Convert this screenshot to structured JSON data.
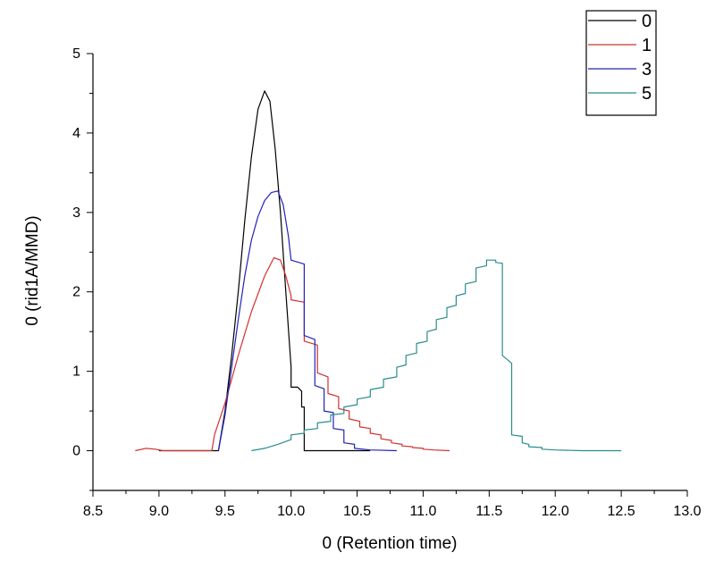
{
  "chart_data": {
    "type": "line",
    "title": "",
    "xlabel": "0 (Retention time)",
    "ylabel": "0 (rid1A/MMD)",
    "xlim": [
      8.5,
      13.0
    ],
    "ylim": [
      -0.5,
      5.0
    ],
    "xticks": [
      "8.5",
      "9.0",
      "9.5",
      "10.0",
      "10.5",
      "11.0",
      "11.5",
      "12.0",
      "12.5",
      "13.0"
    ],
    "yticks": [
      "0",
      "1",
      "2",
      "3",
      "4",
      "5"
    ],
    "grid": false,
    "legend_position": "top-right",
    "series": [
      {
        "name": "0",
        "color": "#000000",
        "points": [
          [
            9.0,
            0
          ],
          [
            9.1,
            0
          ],
          [
            9.2,
            0
          ],
          [
            9.3,
            0
          ],
          [
            9.4,
            0
          ],
          [
            9.45,
            0
          ],
          [
            9.5,
            0.5
          ],
          [
            9.55,
            1.2
          ],
          [
            9.6,
            2.0
          ],
          [
            9.65,
            2.9
          ],
          [
            9.7,
            3.7
          ],
          [
            9.75,
            4.3
          ],
          [
            9.8,
            4.53
          ],
          [
            9.84,
            4.4
          ],
          [
            9.88,
            3.8
          ],
          [
            9.92,
            3.0
          ],
          [
            9.96,
            2.0
          ],
          [
            10.0,
            1.05
          ],
          [
            10.0,
            0.8
          ],
          [
            10.05,
            0.8
          ],
          [
            10.08,
            0.75
          ],
          [
            10.08,
            0.55
          ],
          [
            10.1,
            0.55
          ],
          [
            10.1,
            0
          ],
          [
            10.3,
            0
          ],
          [
            10.6,
            0
          ]
        ]
      },
      {
        "name": "1",
        "color": "#d03030",
        "points": [
          [
            8.82,
            0
          ],
          [
            8.9,
            0.03
          ],
          [
            8.97,
            0.02
          ],
          [
            9.03,
            0
          ],
          [
            9.2,
            0
          ],
          [
            9.35,
            0
          ],
          [
            9.4,
            0
          ],
          [
            9.42,
            0.2
          ],
          [
            9.5,
            0.6
          ],
          [
            9.6,
            1.2
          ],
          [
            9.7,
            1.75
          ],
          [
            9.8,
            2.2
          ],
          [
            9.87,
            2.43
          ],
          [
            9.92,
            2.4
          ],
          [
            9.96,
            2.2
          ],
          [
            10.0,
            1.95
          ],
          [
            10.0,
            1.9
          ],
          [
            10.1,
            1.87
          ],
          [
            10.1,
            1.38
          ],
          [
            10.2,
            1.33
          ],
          [
            10.2,
            0.98
          ],
          [
            10.28,
            0.93
          ],
          [
            10.28,
            0.72
          ],
          [
            10.36,
            0.68
          ],
          [
            10.36,
            0.53
          ],
          [
            10.44,
            0.5
          ],
          [
            10.44,
            0.4
          ],
          [
            10.52,
            0.37
          ],
          [
            10.52,
            0.3
          ],
          [
            10.6,
            0.28
          ],
          [
            10.6,
            0.22
          ],
          [
            10.68,
            0.2
          ],
          [
            10.68,
            0.15
          ],
          [
            10.76,
            0.13
          ],
          [
            10.76,
            0.1
          ],
          [
            10.84,
            0.08
          ],
          [
            10.84,
            0.06
          ],
          [
            10.92,
            0.05
          ],
          [
            10.92,
            0.04
          ],
          [
            11.0,
            0.03
          ],
          [
            11.0,
            0.02
          ],
          [
            11.08,
            0.01
          ],
          [
            11.2,
            0
          ]
        ]
      },
      {
        "name": "3",
        "color": "#2222bb",
        "points": [
          [
            9.45,
            0
          ],
          [
            9.5,
            0.45
          ],
          [
            9.55,
            1.05
          ],
          [
            9.6,
            1.65
          ],
          [
            9.65,
            2.2
          ],
          [
            9.7,
            2.65
          ],
          [
            9.75,
            2.95
          ],
          [
            9.8,
            3.15
          ],
          [
            9.85,
            3.25
          ],
          [
            9.9,
            3.27
          ],
          [
            9.94,
            3.1
          ],
          [
            9.98,
            2.7
          ],
          [
            10.0,
            2.4
          ],
          [
            10.0,
            2.4
          ],
          [
            10.1,
            2.35
          ],
          [
            10.1,
            1.45
          ],
          [
            10.18,
            1.4
          ],
          [
            10.18,
            0.82
          ],
          [
            10.25,
            0.78
          ],
          [
            10.25,
            0.5
          ],
          [
            10.32,
            0.48
          ],
          [
            10.32,
            0.28
          ],
          [
            10.4,
            0.26
          ],
          [
            10.4,
            0.1
          ],
          [
            10.48,
            0.08
          ],
          [
            10.48,
            0.03
          ],
          [
            10.6,
            0.01
          ],
          [
            10.8,
            0
          ]
        ]
      },
      {
        "name": "5",
        "color": "#2a8c8c",
        "points": [
          [
            9.7,
            0
          ],
          [
            9.8,
            0.03
          ],
          [
            9.9,
            0.08
          ],
          [
            10.0,
            0.14
          ],
          [
            10.0,
            0.2
          ],
          [
            10.1,
            0.22
          ],
          [
            10.1,
            0.26
          ],
          [
            10.2,
            0.28
          ],
          [
            10.2,
            0.35
          ],
          [
            10.3,
            0.37
          ],
          [
            10.3,
            0.45
          ],
          [
            10.4,
            0.47
          ],
          [
            10.4,
            0.55
          ],
          [
            10.5,
            0.58
          ],
          [
            10.5,
            0.65
          ],
          [
            10.6,
            0.68
          ],
          [
            10.6,
            0.77
          ],
          [
            10.7,
            0.8
          ],
          [
            10.7,
            0.9
          ],
          [
            10.8,
            0.93
          ],
          [
            10.8,
            1.05
          ],
          [
            10.87,
            1.08
          ],
          [
            10.87,
            1.2
          ],
          [
            10.95,
            1.23
          ],
          [
            10.95,
            1.35
          ],
          [
            11.03,
            1.38
          ],
          [
            11.03,
            1.5
          ],
          [
            11.1,
            1.53
          ],
          [
            11.1,
            1.65
          ],
          [
            11.18,
            1.68
          ],
          [
            11.18,
            1.8
          ],
          [
            11.25,
            1.83
          ],
          [
            11.25,
            1.95
          ],
          [
            11.32,
            1.98
          ],
          [
            11.32,
            2.1
          ],
          [
            11.4,
            2.13
          ],
          [
            11.4,
            2.3
          ],
          [
            11.48,
            2.33
          ],
          [
            11.48,
            2.4
          ],
          [
            11.55,
            2.4
          ],
          [
            11.55,
            2.37
          ],
          [
            11.6,
            2.36
          ],
          [
            11.6,
            1.2
          ],
          [
            11.67,
            1.1
          ],
          [
            11.67,
            0.2
          ],
          [
            11.75,
            0.18
          ],
          [
            11.75,
            0.1
          ],
          [
            11.8,
            0.08
          ],
          [
            11.8,
            0.05
          ],
          [
            11.9,
            0.04
          ],
          [
            11.9,
            0.02
          ],
          [
            12.0,
            0.01
          ],
          [
            12.2,
            0
          ],
          [
            12.5,
            0
          ]
        ]
      }
    ]
  }
}
